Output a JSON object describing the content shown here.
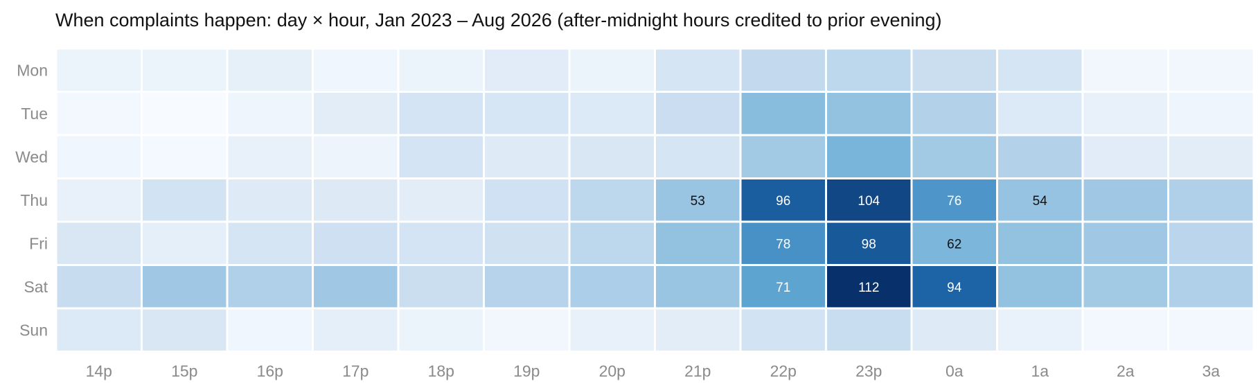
{
  "chart_data": {
    "type": "heatmap",
    "title": "When complaints happen: day × hour, Jan 2023 – Aug 2026 (after-midnight hours credited to prior evening)",
    "x_categories": [
      "14p",
      "15p",
      "16p",
      "17p",
      "18p",
      "19p",
      "20p",
      "21p",
      "22p",
      "23p",
      "0a",
      "1a",
      "2a",
      "3a"
    ],
    "y_categories": [
      "Mon",
      "Tue",
      "Wed",
      "Thu",
      "Fri",
      "Sat",
      "Sun"
    ],
    "color_scale": {
      "min_color": "#f7fbff",
      "max_color": "#0b3168",
      "vmin": 0,
      "vmax": 112
    },
    "values": [
      [
        10,
        9,
        14,
        6,
        9,
        18,
        10,
        27,
        40,
        42,
        36,
        27,
        5,
        5
      ],
      [
        4,
        0,
        7,
        17,
        28,
        26,
        22,
        35,
        58,
        55,
        45,
        22,
        12,
        7
      ],
      [
        6,
        3,
        12,
        8,
        28,
        20,
        24,
        27,
        50,
        63,
        50,
        45,
        18,
        17
      ],
      [
        12,
        30,
        20,
        21,
        17,
        32,
        42,
        53,
        96,
        104,
        76,
        54,
        51,
        46
      ],
      [
        24,
        15,
        27,
        33,
        28,
        31,
        42,
        55,
        78,
        98,
        62,
        55,
        51,
        43
      ],
      [
        38,
        51,
        46,
        51,
        36,
        44,
        47,
        53,
        71,
        112,
        94,
        55,
        50,
        46
      ],
      [
        22,
        24,
        6,
        15,
        9,
        5,
        12,
        17,
        30,
        37,
        20,
        11,
        4,
        4
      ]
    ],
    "annotated_cells": [
      {
        "row": "Thu",
        "col": "21p",
        "value": 53
      },
      {
        "row": "Thu",
        "col": "22p",
        "value": 96
      },
      {
        "row": "Thu",
        "col": "23p",
        "value": 104
      },
      {
        "row": "Thu",
        "col": "0a",
        "value": 76
      },
      {
        "row": "Thu",
        "col": "1a",
        "value": 54
      },
      {
        "row": "Fri",
        "col": "22p",
        "value": 78
      },
      {
        "row": "Fri",
        "col": "23p",
        "value": 98
      },
      {
        "row": "Fri",
        "col": "0a",
        "value": 62
      },
      {
        "row": "Sat",
        "col": "22p",
        "value": 71
      },
      {
        "row": "Sat",
        "col": "23p",
        "value": 112
      },
      {
        "row": "Sat",
        "col": "0a",
        "value": 94
      }
    ],
    "legend": "none"
  }
}
